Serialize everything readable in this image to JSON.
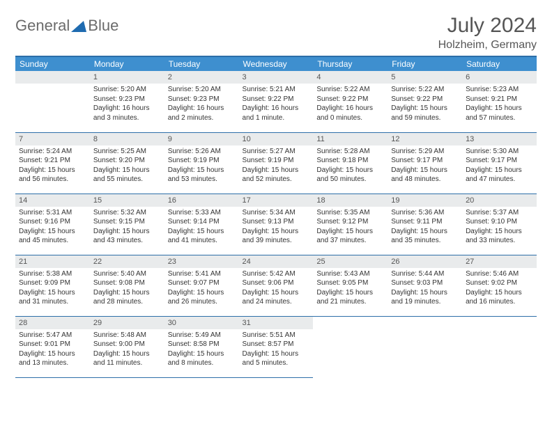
{
  "brand": {
    "part1": "General",
    "part2": "Blue"
  },
  "title": "July 2024",
  "location": "Holzheim, Germany",
  "colors": {
    "header_bg": "#3e8fcf",
    "header_border": "#2c6ea8",
    "daynum_bg": "#e9ebec",
    "text_muted": "#555555",
    "logo_triangle": "#1f6bb0"
  },
  "weekdays": [
    "Sunday",
    "Monday",
    "Tuesday",
    "Wednesday",
    "Thursday",
    "Friday",
    "Saturday"
  ],
  "weeks": [
    [
      null,
      {
        "n": "1",
        "sunrise": "5:20 AM",
        "sunset": "9:23 PM",
        "daylight": "16 hours and 3 minutes."
      },
      {
        "n": "2",
        "sunrise": "5:20 AM",
        "sunset": "9:23 PM",
        "daylight": "16 hours and 2 minutes."
      },
      {
        "n": "3",
        "sunrise": "5:21 AM",
        "sunset": "9:22 PM",
        "daylight": "16 hours and 1 minute."
      },
      {
        "n": "4",
        "sunrise": "5:22 AM",
        "sunset": "9:22 PM",
        "daylight": "16 hours and 0 minutes."
      },
      {
        "n": "5",
        "sunrise": "5:22 AM",
        "sunset": "9:22 PM",
        "daylight": "15 hours and 59 minutes."
      },
      {
        "n": "6",
        "sunrise": "5:23 AM",
        "sunset": "9:21 PM",
        "daylight": "15 hours and 57 minutes."
      }
    ],
    [
      {
        "n": "7",
        "sunrise": "5:24 AM",
        "sunset": "9:21 PM",
        "daylight": "15 hours and 56 minutes."
      },
      {
        "n": "8",
        "sunrise": "5:25 AM",
        "sunset": "9:20 PM",
        "daylight": "15 hours and 55 minutes."
      },
      {
        "n": "9",
        "sunrise": "5:26 AM",
        "sunset": "9:19 PM",
        "daylight": "15 hours and 53 minutes."
      },
      {
        "n": "10",
        "sunrise": "5:27 AM",
        "sunset": "9:19 PM",
        "daylight": "15 hours and 52 minutes."
      },
      {
        "n": "11",
        "sunrise": "5:28 AM",
        "sunset": "9:18 PM",
        "daylight": "15 hours and 50 minutes."
      },
      {
        "n": "12",
        "sunrise": "5:29 AM",
        "sunset": "9:17 PM",
        "daylight": "15 hours and 48 minutes."
      },
      {
        "n": "13",
        "sunrise": "5:30 AM",
        "sunset": "9:17 PM",
        "daylight": "15 hours and 47 minutes."
      }
    ],
    [
      {
        "n": "14",
        "sunrise": "5:31 AM",
        "sunset": "9:16 PM",
        "daylight": "15 hours and 45 minutes."
      },
      {
        "n": "15",
        "sunrise": "5:32 AM",
        "sunset": "9:15 PM",
        "daylight": "15 hours and 43 minutes."
      },
      {
        "n": "16",
        "sunrise": "5:33 AM",
        "sunset": "9:14 PM",
        "daylight": "15 hours and 41 minutes."
      },
      {
        "n": "17",
        "sunrise": "5:34 AM",
        "sunset": "9:13 PM",
        "daylight": "15 hours and 39 minutes."
      },
      {
        "n": "18",
        "sunrise": "5:35 AM",
        "sunset": "9:12 PM",
        "daylight": "15 hours and 37 minutes."
      },
      {
        "n": "19",
        "sunrise": "5:36 AM",
        "sunset": "9:11 PM",
        "daylight": "15 hours and 35 minutes."
      },
      {
        "n": "20",
        "sunrise": "5:37 AM",
        "sunset": "9:10 PM",
        "daylight": "15 hours and 33 minutes."
      }
    ],
    [
      {
        "n": "21",
        "sunrise": "5:38 AM",
        "sunset": "9:09 PM",
        "daylight": "15 hours and 31 minutes."
      },
      {
        "n": "22",
        "sunrise": "5:40 AM",
        "sunset": "9:08 PM",
        "daylight": "15 hours and 28 minutes."
      },
      {
        "n": "23",
        "sunrise": "5:41 AM",
        "sunset": "9:07 PM",
        "daylight": "15 hours and 26 minutes."
      },
      {
        "n": "24",
        "sunrise": "5:42 AM",
        "sunset": "9:06 PM",
        "daylight": "15 hours and 24 minutes."
      },
      {
        "n": "25",
        "sunrise": "5:43 AM",
        "sunset": "9:05 PM",
        "daylight": "15 hours and 21 minutes."
      },
      {
        "n": "26",
        "sunrise": "5:44 AM",
        "sunset": "9:03 PM",
        "daylight": "15 hours and 19 minutes."
      },
      {
        "n": "27",
        "sunrise": "5:46 AM",
        "sunset": "9:02 PM",
        "daylight": "15 hours and 16 minutes."
      }
    ],
    [
      {
        "n": "28",
        "sunrise": "5:47 AM",
        "sunset": "9:01 PM",
        "daylight": "15 hours and 13 minutes."
      },
      {
        "n": "29",
        "sunrise": "5:48 AM",
        "sunset": "9:00 PM",
        "daylight": "15 hours and 11 minutes."
      },
      {
        "n": "30",
        "sunrise": "5:49 AM",
        "sunset": "8:58 PM",
        "daylight": "15 hours and 8 minutes."
      },
      {
        "n": "31",
        "sunrise": "5:51 AM",
        "sunset": "8:57 PM",
        "daylight": "15 hours and 5 minutes."
      },
      null,
      null,
      null
    ]
  ],
  "labels": {
    "sunrise": "Sunrise: ",
    "sunset": "Sunset: ",
    "daylight": "Daylight: "
  }
}
